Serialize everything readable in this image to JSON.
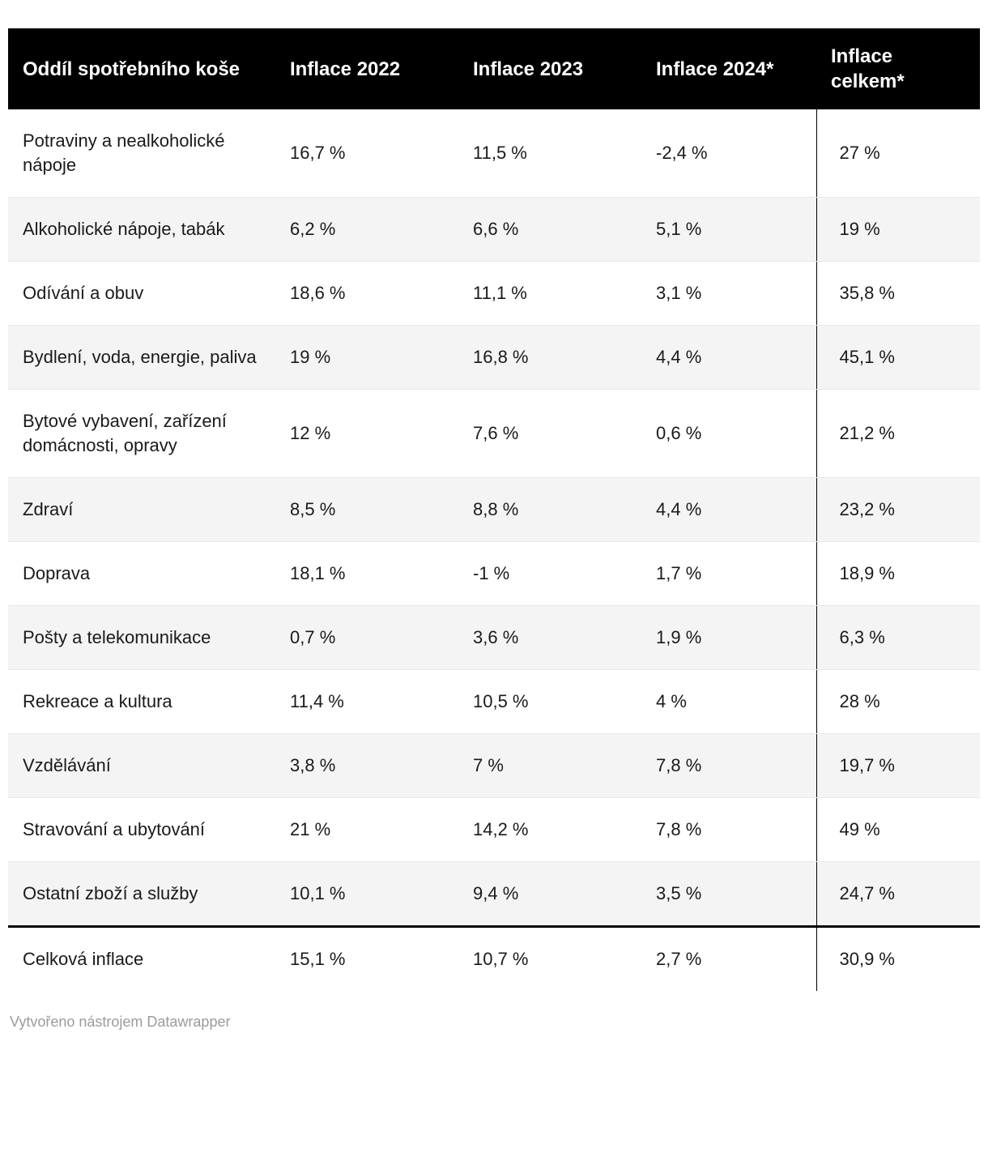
{
  "chart_data": {
    "type": "table",
    "columns": [
      "Oddíl spotřebního koše",
      "Inflace 2022",
      "Inflace 2023",
      "Inflace 2024*",
      "Inflace celkem*"
    ],
    "rows": [
      [
        "Potraviny a nealkoholické nápoje",
        "16,7 %",
        "11,5 %",
        "-2,4 %",
        "27 %"
      ],
      [
        "Alkoholické nápoje, tabák",
        "6,2 %",
        "6,6 %",
        "5,1 %",
        "19 %"
      ],
      [
        "Odívání a obuv",
        "18,6 %",
        "11,1 %",
        "3,1 %",
        "35,8 %"
      ],
      [
        "Bydlení, voda, energie, paliva",
        "19 %",
        "16,8 %",
        "4,4 %",
        "45,1 %"
      ],
      [
        "Bytové vybavení, zařízení domácnosti, opravy",
        "12 %",
        "7,6 %",
        "0,6 %",
        "21,2 %"
      ],
      [
        "Zdraví",
        "8,5 %",
        "8,8 %",
        "4,4 %",
        "23,2 %"
      ],
      [
        "Doprava",
        "18,1 %",
        "-1 %",
        "1,7 %",
        "18,9 %"
      ],
      [
        "Pošty a telekomunikace",
        "0,7 %",
        "3,6 %",
        "1,9 %",
        "6,3 %"
      ],
      [
        "Rekreace a kultura",
        "11,4 %",
        "10,5 %",
        "4 %",
        "28 %"
      ],
      [
        "Vzdělávání",
        "3,8 %",
        "7 %",
        "7,8 %",
        "19,7 %"
      ],
      [
        "Stravování a ubytování",
        "21 %",
        "14,2 %",
        "7,8 %",
        "49 %"
      ],
      [
        "Ostatní zboží a služby",
        "10,1 %",
        "9,4 %",
        "3,5 %",
        "24,7 %"
      ]
    ],
    "total_row": [
      "Celková inflace",
      "15,1 %",
      "10,7 %",
      "2,7 %",
      "30,9 %"
    ],
    "layout": {
      "header_background": "#000000",
      "header_text_color": "#ffffff",
      "alternating_row_color": "#f4f4f4",
      "last_column_divider_color": "#000000",
      "total_row_top_border_color": "#000000"
    }
  },
  "footer": {
    "credit": "Vytvořeno nástrojem Datawrapper"
  }
}
